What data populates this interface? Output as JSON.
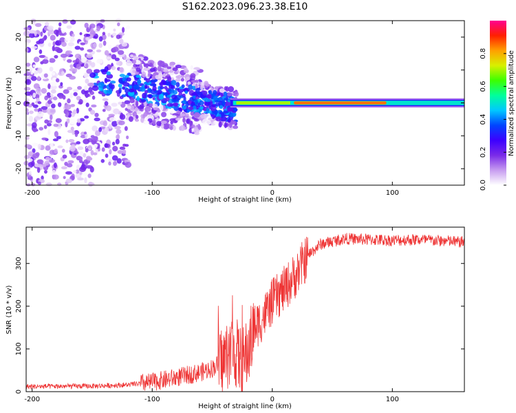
{
  "title": "S162.2023.096.23.38.E10",
  "chart_data": [
    {
      "type": "heatmap",
      "xlabel": "Height of straight line (km)",
      "ylabel": "Frequency (Hz)",
      "xlim": [
        -205,
        160
      ],
      "ylim": [
        -25,
        25
      ],
      "xticks": [
        -200,
        -100,
        0,
        100
      ],
      "yticks": [
        -20,
        -10,
        0,
        10,
        20
      ],
      "colorbar": {
        "label": "Normalized spectral amplitude",
        "range": [
          0,
          1
        ],
        "ticks": [
          "0.0",
          "0.2",
          "0.4",
          "0.6",
          "0.8"
        ],
        "colors": [
          "#ffffff",
          "#c79cf0",
          "#7a2be8",
          "#3c00ff",
          "#0044ff",
          "#00c8ff",
          "#00ff9c",
          "#3cff00",
          "#d8f000",
          "#ffa000",
          "#ff2000",
          "#ff0090"
        ]
      },
      "features": {
        "scatter_region_x": [
          -205,
          -30
        ],
        "scatter_region_y": [
          -25,
          25
        ],
        "main_band": {
          "x_start": -35,
          "x_end": 160,
          "freq_hz": 0,
          "halfwidth_hz": 1.2
        },
        "peak_segment": {
          "x_start": 18,
          "x_end": 95,
          "amplitude": 0.85
        }
      }
    },
    {
      "type": "line",
      "xlabel": "Height of straight line (km)",
      "ylabel": "SNR (10 * v/v)",
      "xlim": [
        -205,
        160
      ],
      "ylim": [
        0,
        385
      ],
      "xticks": [
        -200,
        -100,
        0,
        100
      ],
      "yticks": [
        0,
        100,
        200,
        300
      ],
      "color": "#ee3333",
      "envelope": {
        "x": [
          -205,
          -150,
          -120,
          -100,
          -80,
          -60,
          -50,
          -40,
          -35,
          -30,
          -25,
          -20,
          -15,
          -10,
          -5,
          0,
          10,
          20,
          30,
          40,
          60,
          80,
          100,
          120,
          140,
          160
        ],
        "y": [
          12,
          13,
          16,
          22,
          33,
          45,
          55,
          75,
          100,
          90,
          65,
          95,
          150,
          165,
          185,
          210,
          240,
          275,
          320,
          345,
          358,
          356,
          354,
          356,
          353,
          350
        ]
      }
    }
  ]
}
